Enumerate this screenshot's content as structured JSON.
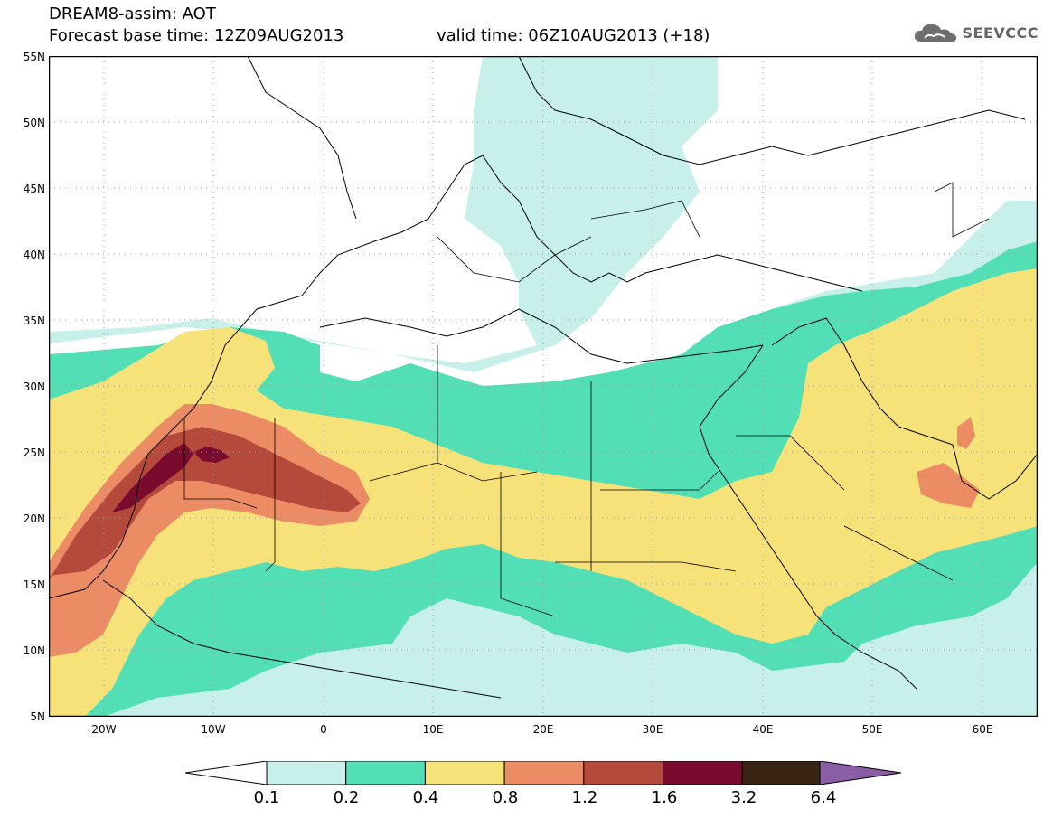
{
  "header": {
    "line1": "DREAM8-assim: AOT",
    "base_time": "Forecast base time: 12Z09AUG2013",
    "valid_time": "valid time: 06Z10AUG2013 (+18)"
  },
  "logo": {
    "text": "SEEVCCC",
    "icon": "cloud-icon"
  },
  "axes": {
    "y_labels": [
      "55N",
      "50N",
      "45N",
      "40N",
      "35N",
      "30N",
      "25N",
      "20N",
      "15N",
      "10N",
      "5N"
    ],
    "x_labels": [
      "20W",
      "10W",
      "0",
      "10E",
      "20E",
      "30E",
      "40E",
      "50E",
      "60E"
    ]
  },
  "legend": {
    "levels": [
      "0.1",
      "0.2",
      "0.4",
      "0.8",
      "1.2",
      "1.6",
      "3.2",
      "6.4"
    ],
    "colors": [
      "#c7f0ea",
      "#52dfb6",
      "#f7e27a",
      "#ec8c65",
      "#b54a3c",
      "#7a0b2e",
      "#3a2414",
      "#8b5da6"
    ]
  },
  "map_region": {
    "lon_range": [
      -25,
      65
    ],
    "lat_range": [
      5,
      55
    ]
  }
}
